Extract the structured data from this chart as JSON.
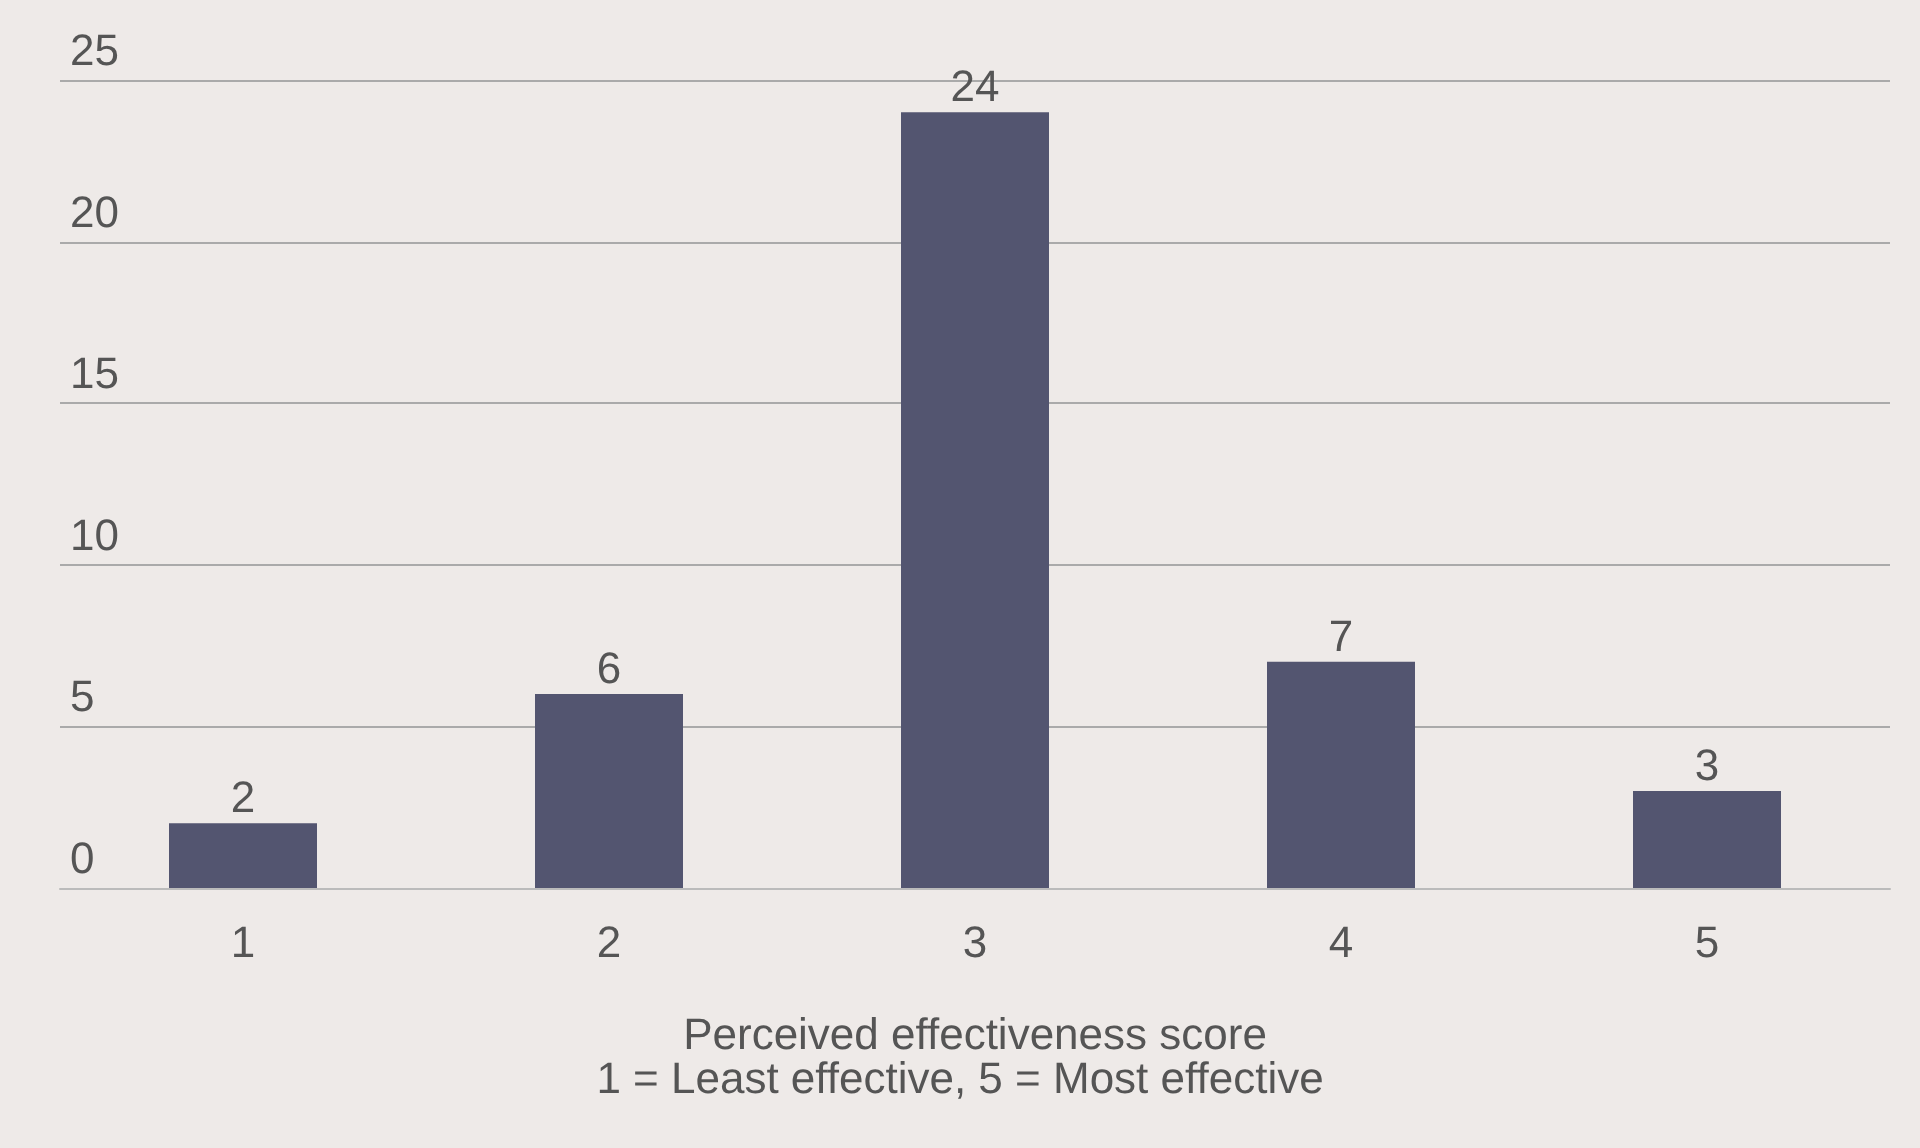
{
  "chart_data": {
    "type": "bar",
    "xlabel": "Perceived effectiveness score",
    "annotations": [
      "1 = Least effective, 5 = Most effective"
    ],
    "categories": [
      "1",
      "2",
      "3",
      "4",
      "5"
    ],
    "values": [
      2,
      6,
      24,
      7,
      3
    ],
    "color": "#535570",
    "ylim": [
      0,
      25
    ],
    "yticks": [
      0,
      5,
      10,
      15,
      20,
      25
    ],
    "grid": "y",
    "data_labels": true
  }
}
